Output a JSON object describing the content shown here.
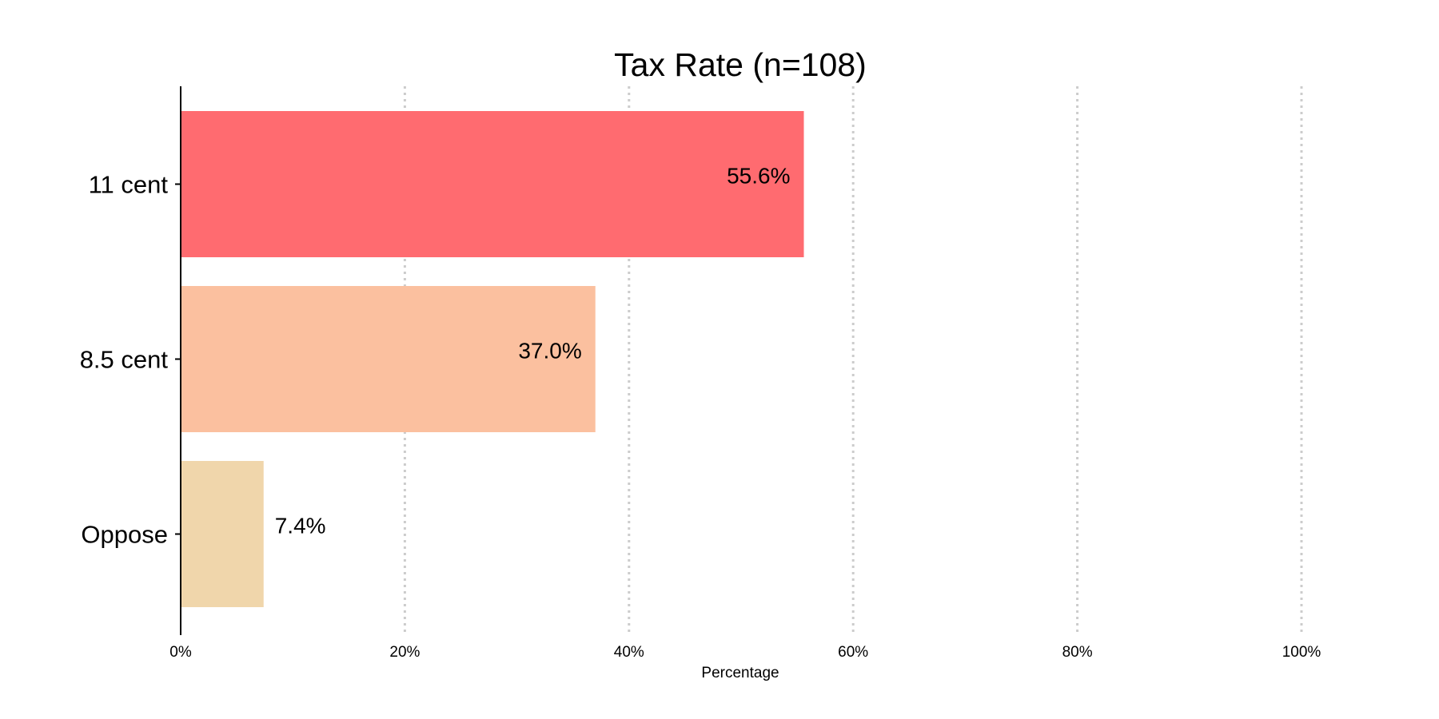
{
  "chart_data": {
    "type": "bar",
    "orientation": "horizontal",
    "title": "Tax Rate (n=108)",
    "xlabel": "Percentage",
    "ylabel": "",
    "xlim": [
      0,
      100
    ],
    "x_ticks": [
      "0%",
      "20%",
      "40%",
      "60%",
      "80%",
      "100%"
    ],
    "x_tick_values": [
      0,
      20,
      40,
      60,
      80,
      100
    ],
    "grid": "vertical dotted",
    "legend": "none",
    "categories": [
      "11 cent",
      "8.5 cent",
      "Oppose"
    ],
    "values": [
      55.6,
      37.0,
      7.4
    ],
    "data_labels": [
      "55.6%",
      "37.0%",
      "7.4%"
    ],
    "colors": [
      "#ff6b70",
      "#fbc09f",
      "#f0d6ab"
    ]
  }
}
